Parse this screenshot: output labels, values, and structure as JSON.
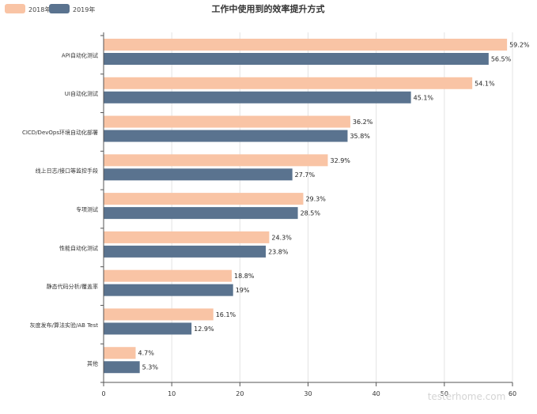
{
  "chart_data": {
    "type": "bar",
    "orientation": "horizontal",
    "title": "工作中使用到的效率提升方式",
    "categories": [
      "API自动化测试",
      "UI自动化测试",
      "CICD/DevOps环境自动化部署",
      "线上日志/接口等监控手段",
      "专项测试",
      "性能自动化测试",
      "静态代码分析/覆盖率",
      "灰度发布/算法实验/AB Test",
      "其他"
    ],
    "series": [
      {
        "name": "2018年",
        "color": "#F9C4A5",
        "values": [
          59.2,
          54.1,
          36.2,
          32.9,
          29.3,
          24.3,
          18.8,
          16.1,
          4.7
        ],
        "labels": [
          "59.2%",
          "54.1%",
          "36.2%",
          "32.9%",
          "29.3%",
          "24.3%",
          "18.8%",
          "16.1%",
          "4.7%"
        ]
      },
      {
        "name": "2019年",
        "color": "#5A738F",
        "values": [
          56.5,
          45.1,
          35.8,
          27.7,
          28.5,
          23.8,
          19,
          12.9,
          5.3
        ],
        "labels": [
          "56.5%",
          "45.1%",
          "35.8%",
          "27.7%",
          "28.5%",
          "23.8%",
          "19%",
          "12.9%",
          "5.3%"
        ]
      }
    ],
    "xlim": [
      0,
      60
    ],
    "xticks": [
      "0",
      "10",
      "20",
      "30",
      "40",
      "50",
      "60"
    ],
    "grid": "vertical",
    "legend_position": "top-left"
  },
  "watermark": "testerhome.com"
}
